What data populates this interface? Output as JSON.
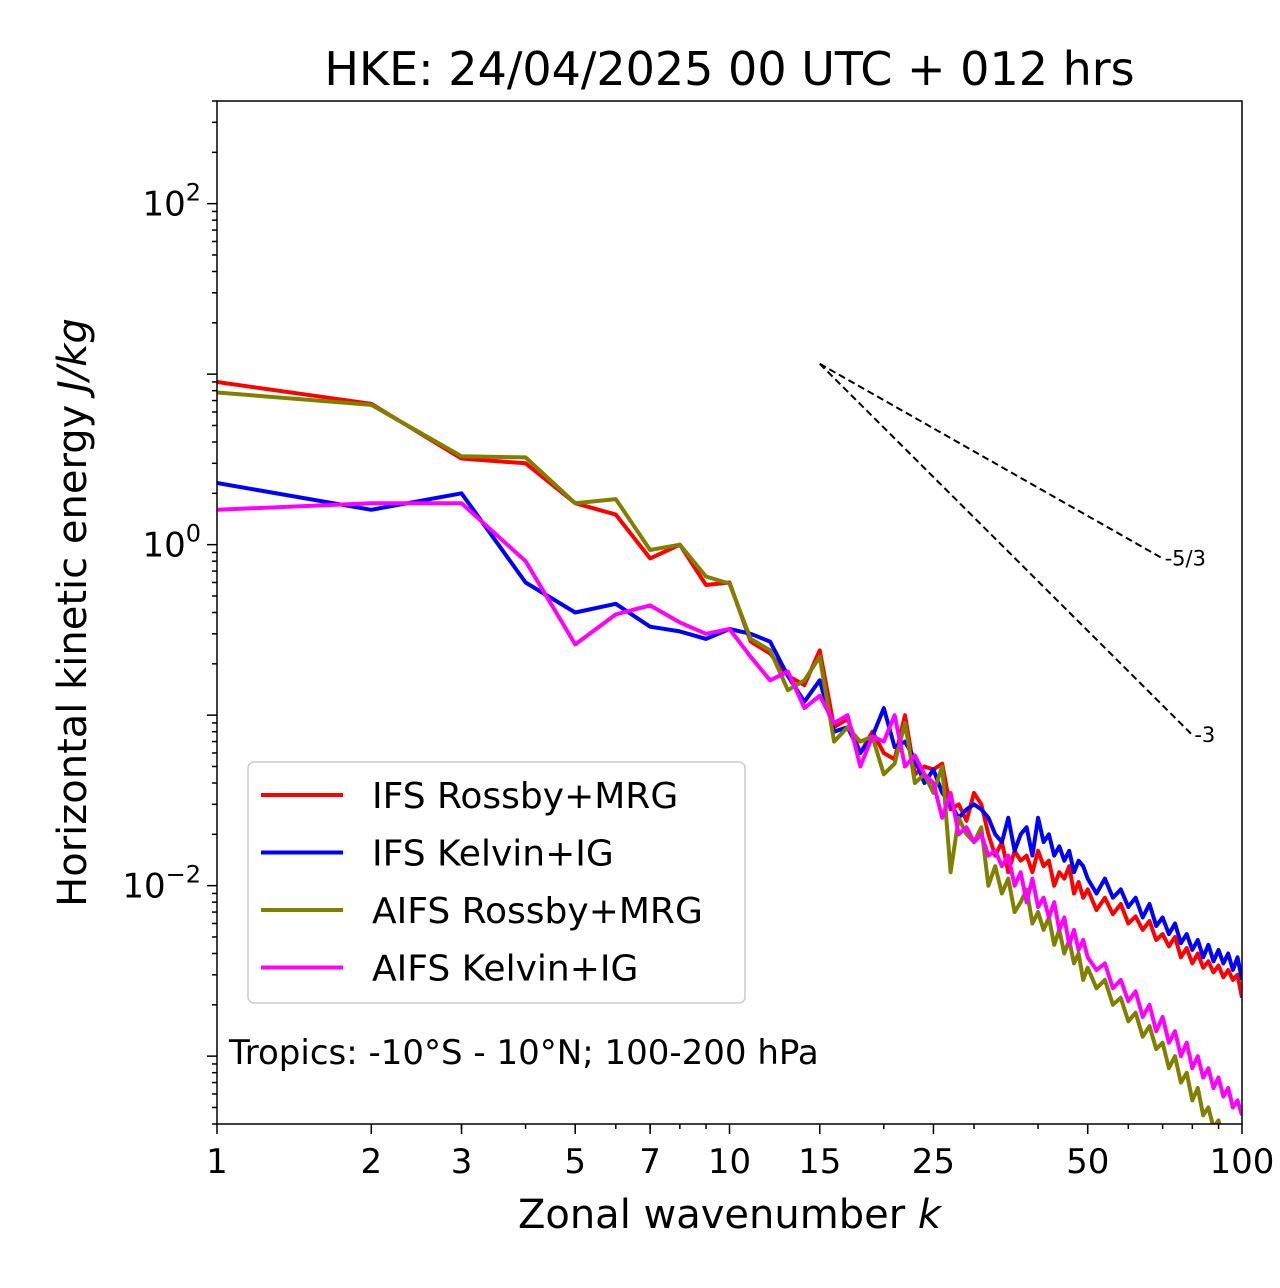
{
  "chart_data": {
    "type": "line",
    "title": "HKE: 24/04/2025 00 UTC + 012 hrs",
    "xlabel_text": "Zonal wavenumber ",
    "xlabel_var": "k",
    "ylabel_text": "Horizontal kinetic energy ",
    "ylabel_units": "J/kg",
    "xscale": "log",
    "yscale": "log",
    "xlim": [
      1,
      100
    ],
    "ylim": [
      0.0004,
      400
    ],
    "xticks": [
      1,
      2,
      3,
      5,
      7,
      10,
      15,
      25,
      50,
      100
    ],
    "xtick_labels": [
      "1",
      "2",
      "3",
      "5",
      "7",
      "10",
      "15",
      "25",
      "50",
      "100"
    ],
    "yticks": [
      {
        "value": 100,
        "base": "10",
        "exp": "2"
      },
      {
        "value": 1,
        "base": "10",
        "exp": "0"
      },
      {
        "value": 0.01,
        "base": "10",
        "exp": "−2"
      }
    ],
    "grid": false,
    "legend_position": "lower-left",
    "annotation": "Tropics: -10°S - 10°N; 100-200 hPa",
    "reference_lines": [
      {
        "label": "-5/3",
        "x": [
          15,
          70
        ],
        "y": [
          11.5,
          0.83
        ],
        "color": "#000000",
        "style": "dashed"
      },
      {
        "label": "-3",
        "x": [
          15,
          80
        ],
        "y": [
          11.5,
          0.0765
        ],
        "color": "#000000",
        "style": "dashed"
      }
    ],
    "series": [
      {
        "name": "IFS Rossby+MRG",
        "color": "#ff0000",
        "x": [
          1,
          2,
          3,
          4,
          5,
          6,
          7,
          8,
          9,
          10,
          11,
          12,
          13,
          14,
          15,
          16,
          17,
          18,
          19,
          20,
          21,
          22,
          23,
          24,
          25,
          26,
          27,
          28,
          29,
          30,
          31,
          32,
          33,
          34,
          35,
          36,
          37,
          38,
          39,
          40,
          41,
          42,
          43,
          44,
          45,
          46,
          47,
          48,
          49,
          50,
          52,
          54,
          56,
          58,
          60,
          62,
          64,
          66,
          68,
          70,
          72,
          74,
          76,
          78,
          80,
          82,
          84,
          86,
          88,
          90,
          92,
          94,
          96,
          98,
          100
        ],
        "y": [
          9.0,
          6.7,
          3.2,
          3.0,
          1.75,
          1.5,
          0.83,
          1.0,
          0.58,
          0.6,
          0.27,
          0.23,
          0.17,
          0.15,
          0.24,
          0.085,
          0.095,
          0.06,
          0.08,
          0.06,
          0.055,
          0.1,
          0.045,
          0.05,
          0.048,
          0.052,
          0.028,
          0.03,
          0.024,
          0.035,
          0.03,
          0.02,
          0.015,
          0.018,
          0.012,
          0.016,
          0.014,
          0.015,
          0.012,
          0.016,
          0.013,
          0.014,
          0.01,
          0.012,
          0.011,
          0.013,
          0.009,
          0.0105,
          0.0085,
          0.0095,
          0.0072,
          0.0085,
          0.0068,
          0.0078,
          0.006,
          0.0066,
          0.0055,
          0.0062,
          0.0048,
          0.0052,
          0.0044,
          0.005,
          0.0038,
          0.0043,
          0.0035,
          0.004,
          0.0033,
          0.0036,
          0.0031,
          0.0034,
          0.0029,
          0.0032,
          0.0028,
          0.003,
          0.0022
        ]
      },
      {
        "name": "IFS Kelvin+IG",
        "color": "#0000ff",
        "x": [
          1,
          2,
          3,
          4,
          5,
          6,
          7,
          8,
          9,
          10,
          11,
          12,
          13,
          14,
          15,
          16,
          17,
          18,
          19,
          20,
          21,
          22,
          23,
          24,
          25,
          26,
          27,
          28,
          29,
          30,
          31,
          32,
          33,
          34,
          35,
          36,
          37,
          38,
          39,
          40,
          41,
          42,
          43,
          44,
          45,
          46,
          47,
          48,
          49,
          50,
          52,
          54,
          56,
          58,
          60,
          62,
          64,
          66,
          68,
          70,
          72,
          74,
          76,
          78,
          80,
          82,
          84,
          86,
          88,
          90,
          92,
          94,
          96,
          98,
          100
        ],
        "y": [
          2.3,
          1.6,
          2.0,
          0.6,
          0.4,
          0.45,
          0.33,
          0.31,
          0.28,
          0.32,
          0.3,
          0.27,
          0.17,
          0.12,
          0.16,
          0.08,
          0.085,
          0.06,
          0.075,
          0.11,
          0.065,
          0.07,
          0.055,
          0.04,
          0.048,
          0.035,
          0.03,
          0.025,
          0.028,
          0.03,
          0.028,
          0.025,
          0.02,
          0.018,
          0.025,
          0.016,
          0.02,
          0.022,
          0.015,
          0.025,
          0.018,
          0.02,
          0.015,
          0.017,
          0.014,
          0.016,
          0.012,
          0.014,
          0.013,
          0.011,
          0.009,
          0.011,
          0.0085,
          0.0095,
          0.0075,
          0.0085,
          0.0065,
          0.0078,
          0.0058,
          0.0065,
          0.0052,
          0.006,
          0.0046,
          0.0052,
          0.0042,
          0.0048,
          0.0038,
          0.0045,
          0.0036,
          0.0042,
          0.0035,
          0.004,
          0.0032,
          0.0038,
          0.0028
        ]
      },
      {
        "name": "AIFS Rossby+MRG",
        "color": "#808000",
        "x": [
          1,
          2,
          3,
          4,
          5,
          6,
          7,
          8,
          9,
          10,
          11,
          12,
          13,
          14,
          15,
          16,
          17,
          18,
          19,
          20,
          21,
          22,
          23,
          24,
          25,
          26,
          27,
          28,
          29,
          30,
          31,
          32,
          33,
          34,
          35,
          36,
          37,
          38,
          39,
          40,
          41,
          42,
          43,
          44,
          45,
          46,
          47,
          48,
          49,
          50,
          52,
          54,
          56,
          58,
          60,
          62,
          64,
          66,
          68,
          70,
          72,
          74,
          76,
          78,
          80,
          82,
          84,
          86,
          88,
          90,
          92,
          94,
          96,
          98,
          100
        ],
        "y": [
          7.8,
          6.6,
          3.3,
          3.25,
          1.75,
          1.85,
          0.93,
          1.0,
          0.65,
          0.59,
          0.28,
          0.24,
          0.14,
          0.16,
          0.22,
          0.07,
          0.085,
          0.07,
          0.075,
          0.045,
          0.052,
          0.09,
          0.04,
          0.045,
          0.035,
          0.05,
          0.012,
          0.025,
          0.02,
          0.018,
          0.022,
          0.01,
          0.013,
          0.009,
          0.011,
          0.007,
          0.008,
          0.0095,
          0.006,
          0.007,
          0.0055,
          0.0065,
          0.0045,
          0.0055,
          0.004,
          0.0048,
          0.0035,
          0.004,
          0.0028,
          0.0033,
          0.0025,
          0.0028,
          0.002,
          0.0022,
          0.0016,
          0.0018,
          0.0013,
          0.0015,
          0.0011,
          0.0012,
          0.00085,
          0.001,
          0.0007,
          0.0008,
          0.00055,
          0.00065,
          0.00045,
          0.0005,
          0.00038,
          0.00042,
          0.00032,
          0.00036,
          0.00028,
          0.0003,
          0.00025
        ]
      },
      {
        "name": "AIFS Kelvin+IG",
        "color": "#ff00ff",
        "x": [
          1,
          2,
          3,
          4,
          5,
          6,
          7,
          8,
          9,
          10,
          11,
          12,
          13,
          14,
          15,
          16,
          17,
          18,
          19,
          20,
          21,
          22,
          23,
          24,
          25,
          26,
          27,
          28,
          29,
          30,
          31,
          32,
          33,
          34,
          35,
          36,
          37,
          38,
          39,
          40,
          41,
          42,
          43,
          44,
          45,
          46,
          47,
          48,
          49,
          50,
          52,
          54,
          56,
          58,
          60,
          62,
          64,
          66,
          68,
          70,
          72,
          74,
          76,
          78,
          80,
          82,
          84,
          86,
          88,
          90,
          92,
          94,
          96,
          98,
          100
        ],
        "y": [
          1.6,
          1.75,
          1.75,
          0.8,
          0.26,
          0.39,
          0.44,
          0.35,
          0.3,
          0.32,
          0.22,
          0.16,
          0.18,
          0.11,
          0.13,
          0.09,
          0.1,
          0.05,
          0.075,
          0.07,
          0.1,
          0.05,
          0.058,
          0.045,
          0.04,
          0.025,
          0.035,
          0.02,
          0.022,
          0.018,
          0.02,
          0.015,
          0.016,
          0.013,
          0.015,
          0.01,
          0.012,
          0.008,
          0.011,
          0.0075,
          0.0085,
          0.0065,
          0.008,
          0.0055,
          0.0065,
          0.0045,
          0.0055,
          0.0042,
          0.0048,
          0.0038,
          0.0032,
          0.0035,
          0.0025,
          0.0028,
          0.0021,
          0.0024,
          0.0017,
          0.002,
          0.0014,
          0.0017,
          0.0012,
          0.0014,
          0.001,
          0.0012,
          0.00085,
          0.001,
          0.00075,
          0.00085,
          0.00065,
          0.00075,
          0.00058,
          0.00065,
          0.0005,
          0.00055,
          0.00045
        ]
      }
    ]
  }
}
